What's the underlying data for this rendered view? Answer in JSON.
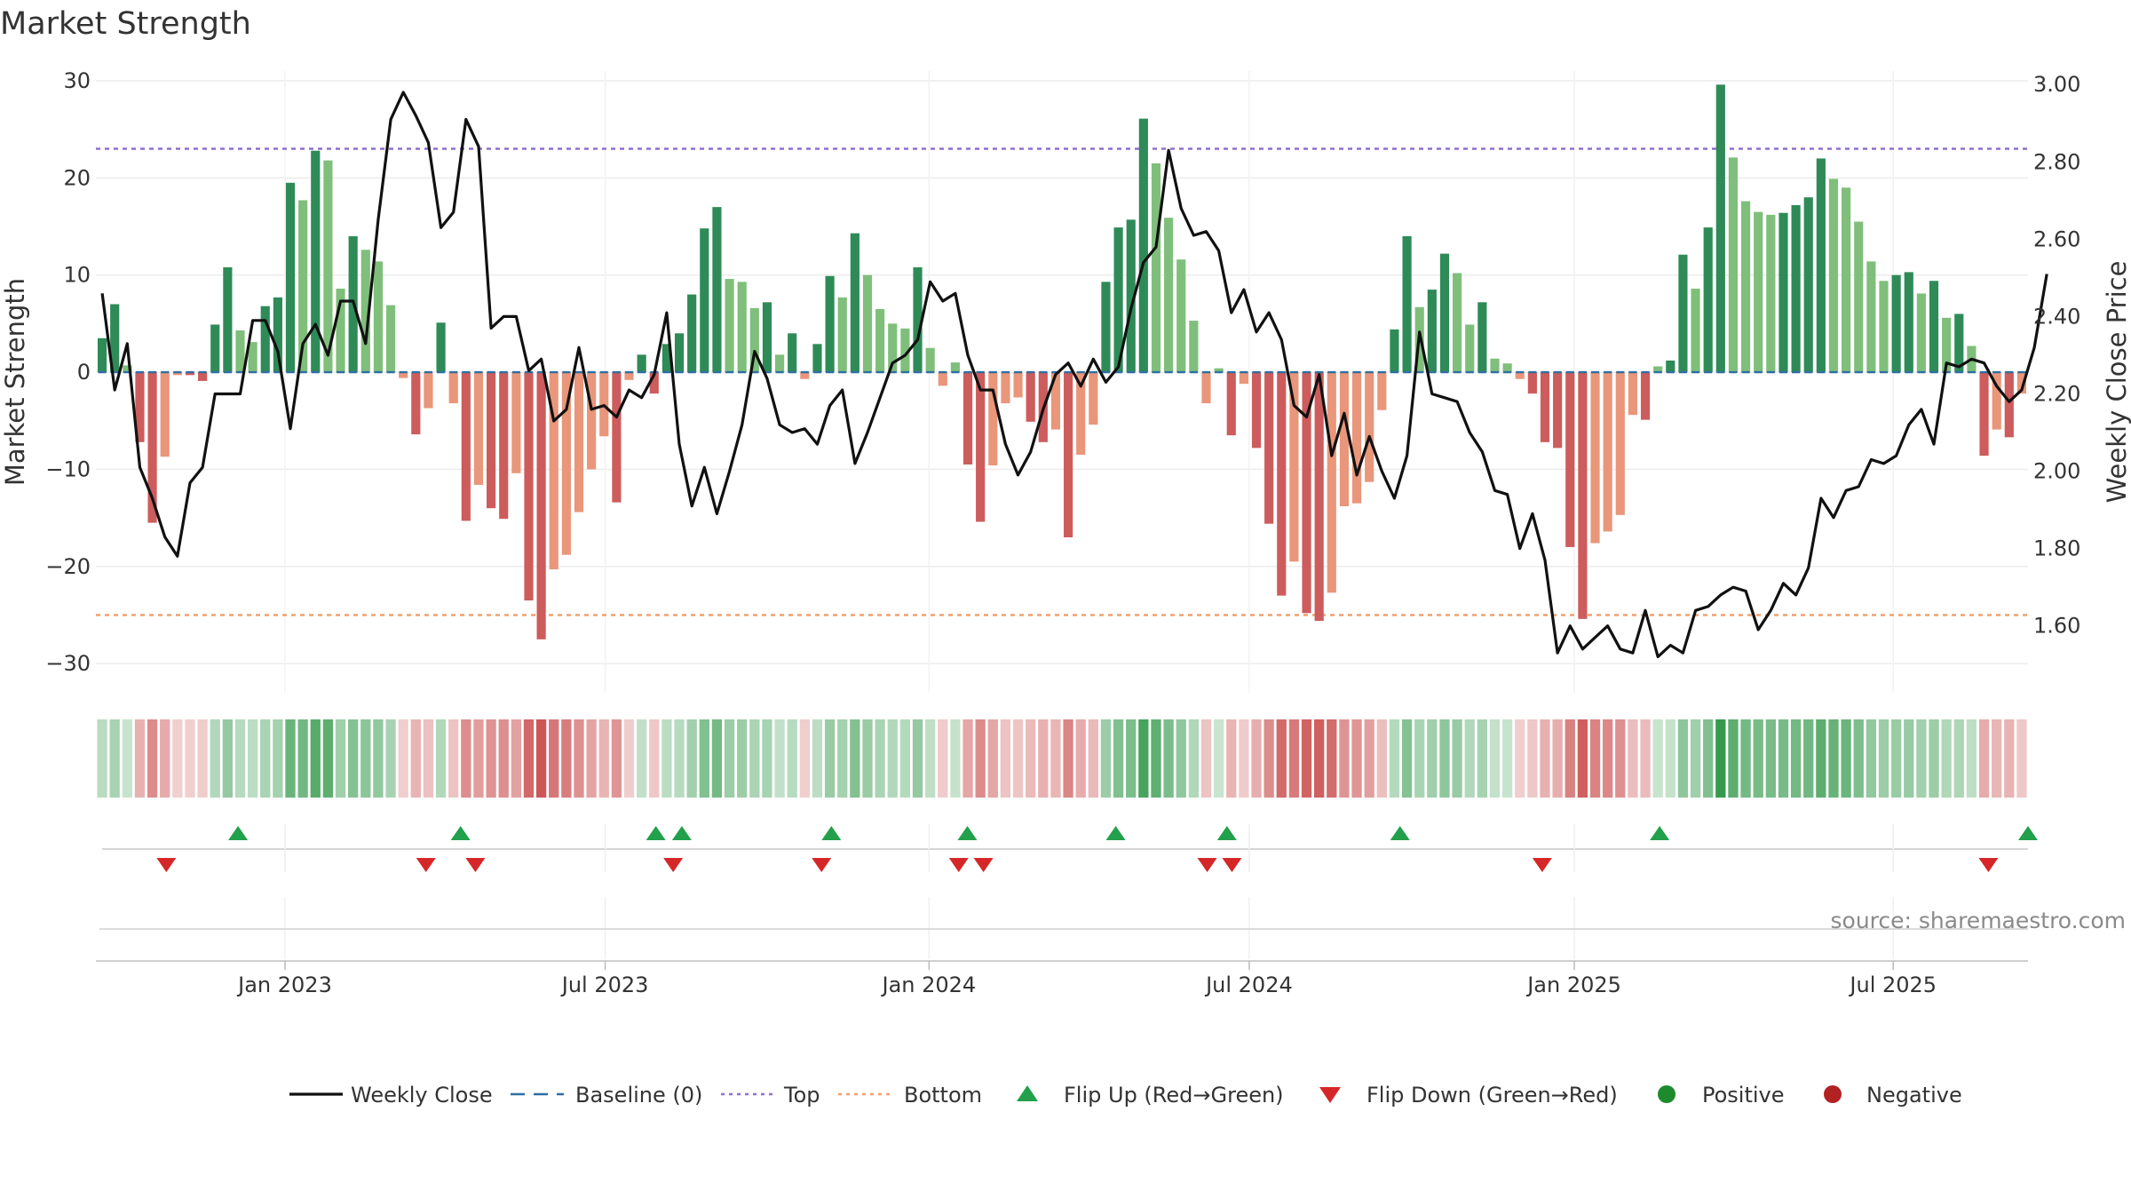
{
  "chart_data": {
    "type": "bar",
    "title": "Market Strength",
    "ylabel": "Market Strength",
    "y2label": "Weekly Close Price",
    "ylim": [
      -33,
      31
    ],
    "y2lim": [
      1.427,
      3.035
    ],
    "yticks": [
      30,
      20,
      10,
      0,
      -10,
      -20,
      -30
    ],
    "ytick_labels": [
      "30",
      "20",
      "10",
      "0",
      "−10",
      "−20",
      "−30"
    ],
    "y2ticks": [
      3.0,
      2.8,
      2.6,
      2.4,
      2.2,
      2.0,
      1.8,
      1.6
    ],
    "y2tick_labels": [
      "3.00",
      "2.80",
      "2.60",
      "2.40",
      "2.20",
      "2.00",
      "1.80",
      "1.60"
    ],
    "x_start_week": -15.3,
    "x_end_week": 141,
    "x_ticks": [
      {
        "label": "Jan 2023",
        "week": 0
      },
      {
        "label": "Jul 2023",
        "week": 25.9
      },
      {
        "label": "Jan 2024",
        "week": 52.1
      },
      {
        "label": "Jul 2024",
        "week": 78
      },
      {
        "label": "Jan 2025",
        "week": 104.3
      },
      {
        "label": "Jul 2025",
        "week": 130.1
      }
    ],
    "top_line": 23,
    "bottom_line": -25,
    "baseline": 0,
    "strength_values": [
      3.5,
      7.0,
      0.7,
      -7.2,
      -15.5,
      -8.7,
      -0.3,
      -0.3,
      -0.9,
      4.9,
      10.8,
      4.3,
      3.1,
      6.8,
      7.7,
      19.5,
      17.7,
      22.8,
      21.8,
      8.6,
      14.0,
      12.6,
      11.4,
      6.9,
      -0.6,
      -6.4,
      -3.7,
      5.1,
      -3.2,
      -15.3,
      -11.6,
      -14.0,
      -15.1,
      -10.4,
      -23.5,
      -27.5,
      -20.3,
      -18.8,
      -14.4,
      -10.0,
      -6.6,
      -13.4,
      -0.8,
      1.8,
      -2.2,
      2.9,
      4.0,
      8.0,
      14.8,
      17.0,
      9.6,
      9.3,
      6.6,
      7.2,
      1.8,
      4.0,
      -0.7,
      2.9,
      9.9,
      7.7,
      14.3,
      10.0,
      6.5,
      5.0,
      4.5,
      10.8,
      2.5,
      -1.4,
      1.0,
      -9.5,
      -15.4,
      -9.6,
      -3.2,
      -2.6,
      -5.1,
      -7.2,
      -5.9,
      -17.0,
      -8.5,
      -5.4,
      9.3,
      14.9,
      15.7,
      26.1,
      21.5,
      15.9,
      11.6,
      5.3,
      -3.2,
      0.4,
      -6.5,
      -1.2,
      -7.8,
      -15.6,
      -23.0,
      -19.5,
      -24.8,
      -25.6,
      -22.7,
      -13.8,
      -13.5,
      -11.3,
      -3.9,
      4.4,
      14.0,
      6.7,
      8.5,
      12.2,
      10.2,
      4.9,
      7.2,
      1.4,
      0.9,
      -0.7,
      -2.2,
      -7.2,
      -7.8,
      -18.0,
      -25.4,
      -17.6,
      -16.4,
      -14.7,
      -4.4,
      -4.9,
      0.6,
      1.2,
      12.1,
      8.6,
      14.9,
      29.6,
      22.1,
      17.6,
      16.5,
      16.2,
      16.4,
      17.2,
      18.0,
      22.0,
      19.9,
      19.0,
      15.5,
      11.4,
      9.4,
      10.0,
      10.3,
      8.1,
      9.4,
      5.6,
      6.0,
      2.7,
      -8.6,
      -5.9,
      -6.7,
      -2.2
    ],
    "weekly_close": [
      2.46,
      2.21,
      2.33,
      2.01,
      1.93,
      1.83,
      1.78,
      1.97,
      2.01,
      2.2,
      2.2,
      2.2,
      2.39,
      2.39,
      2.31,
      2.11,
      2.33,
      2.38,
      2.3,
      2.44,
      2.44,
      2.33,
      2.65,
      2.91,
      2.98,
      2.92,
      2.85,
      2.63,
      2.67,
      2.91,
      2.84,
      2.37,
      2.4,
      2.4,
      2.26,
      2.29,
      2.13,
      2.16,
      2.32,
      2.16,
      2.17,
      2.14,
      2.21,
      2.19,
      2.25,
      2.41,
      2.07,
      1.91,
      2.01,
      1.89,
      2.0,
      2.12,
      2.31,
      2.24,
      2.12,
      2.1,
      2.11,
      2.07,
      2.17,
      2.21,
      2.02,
      2.1,
      2.19,
      2.28,
      2.3,
      2.34,
      2.49,
      2.44,
      2.46,
      2.3,
      2.21,
      2.21,
      2.07,
      1.99,
      2.05,
      2.16,
      2.25,
      2.28,
      2.22,
      2.29,
      2.23,
      2.27,
      2.42,
      2.54,
      2.58,
      2.83,
      2.68,
      2.61,
      2.62,
      2.57,
      2.41,
      2.47,
      2.36,
      2.41,
      2.34,
      2.17,
      2.14,
      2.25,
      2.04,
      2.15,
      1.99,
      2.09,
      2.0,
      1.93,
      2.04,
      2.36,
      2.2,
      2.19,
      2.18,
      2.1,
      2.05,
      1.95,
      1.94,
      1.8,
      1.89,
      1.77,
      1.53,
      1.6,
      1.54,
      1.57,
      1.6,
      1.54,
      1.53,
      1.64,
      1.52,
      1.55,
      1.53,
      1.64,
      1.65,
      1.68,
      1.7,
      1.69,
      1.59,
      1.64,
      1.71,
      1.68,
      1.75,
      1.93,
      1.88,
      1.95,
      1.96,
      2.03,
      2.02,
      2.04,
      2.12,
      2.16,
      2.07,
      2.28,
      2.27,
      2.29,
      2.28,
      2.22,
      2.18,
      2.21,
      2.32,
      2.51
    ],
    "signal_strip_values": [
      3.5,
      7.0,
      0.7,
      -7.2,
      -15.5,
      -8.7,
      -0.3,
      -0.3,
      -0.9,
      4.9,
      10.8,
      4.3,
      3.1,
      6.8,
      7.7,
      19.5,
      17.7,
      22.8,
      21.8,
      8.6,
      14.0,
      12.6,
      11.4,
      6.9,
      -0.6,
      -6.4,
      -3.7,
      5.1,
      -3.2,
      -15.3,
      -11.6,
      -14.0,
      -15.1,
      -10.4,
      -23.5,
      -27.5,
      -20.3,
      -18.8,
      -14.4,
      -10.0,
      -6.6,
      -13.4,
      -0.8,
      1.8,
      -2.2,
      2.9,
      4.0,
      8.0,
      14.8,
      17.0,
      9.6,
      9.3,
      6.6,
      7.2,
      1.8,
      4.0,
      -0.7,
      2.9,
      9.9,
      7.7,
      14.3,
      10.0,
      6.5,
      5.0,
      4.5,
      10.8,
      2.5,
      -1.4,
      1.0,
      -9.5,
      -15.4,
      -9.6,
      -3.2,
      -2.6,
      -5.1,
      -7.2,
      -5.9,
      -17.0,
      -8.5,
      -5.4,
      9.3,
      14.9,
      15.7,
      26.1,
      21.5,
      15.9,
      11.6,
      5.3,
      -3.2,
      0.4,
      -6.5,
      -1.2,
      -7.8,
      -15.6,
      -23.0,
      -19.5,
      -24.8,
      -25.6,
      -22.7,
      -13.8,
      -13.5,
      -11.3,
      -3.9,
      4.4,
      14.0,
      6.7,
      8.5,
      12.2,
      10.2,
      4.9,
      7.2,
      1.4,
      0.9,
      -0.7,
      -2.2,
      -7.2,
      -7.8,
      -18.0,
      -25.4,
      -17.6,
      -16.4,
      -14.7,
      -4.4,
      -4.9,
      0.6,
      1.2,
      12.1,
      8.6,
      14.9,
      29.6,
      22.1,
      17.6,
      16.5,
      16.2,
      16.4,
      17.2,
      18.0,
      22.0,
      19.9,
      19.0,
      15.5,
      11.4,
      9.4,
      10.0,
      10.3,
      8.1,
      9.4,
      5.6,
      6.0,
      2.7,
      -8.6,
      -5.9,
      -6.7,
      -2.2
    ],
    "flip_up_weeks": [
      -3.8,
      14.2,
      30.0,
      32.1,
      44.2,
      55.2,
      67.2,
      76.2,
      90.2,
      111.2,
      141.0
    ],
    "flip_down_weeks": [
      -9.6,
      11.4,
      15.4,
      31.4,
      43.4,
      54.5,
      56.5,
      74.6,
      76.6,
      101.7,
      137.8
    ],
    "source": "source: sharemaestro.com",
    "legend": [
      {
        "label": "Weekly Close",
        "kind": "line",
        "color": "#111111"
      },
      {
        "label": "Baseline (0)",
        "kind": "dash",
        "color": "#2f6fa3"
      },
      {
        "label": "Top",
        "kind": "dot",
        "color": "#8e6fce"
      },
      {
        "label": "Bottom",
        "kind": "dot",
        "color": "#f0a070"
      },
      {
        "label": "Flip Up (Red→Green)",
        "kind": "tri-up",
        "color": "#22a04b"
      },
      {
        "label": "Flip Down (Green→Red)",
        "kind": "tri-down",
        "color": "#d62728"
      },
      {
        "label": "Positive",
        "kind": "circle",
        "color": "#1e8a2e"
      },
      {
        "label": "Negative",
        "kind": "circle",
        "color": "#b22222"
      }
    ],
    "colors": {
      "strong_green": "#2e8b57",
      "light_green": "#7fbf7b",
      "strong_red": "#cd5c5c",
      "light_red": "#e9967a",
      "top_line": "#8e6fce",
      "bottom_line": "#f0a070",
      "baseline": "#2f6fa3",
      "close_line": "#111111",
      "flip_up": "#22a04b",
      "flip_down": "#d62728"
    }
  }
}
